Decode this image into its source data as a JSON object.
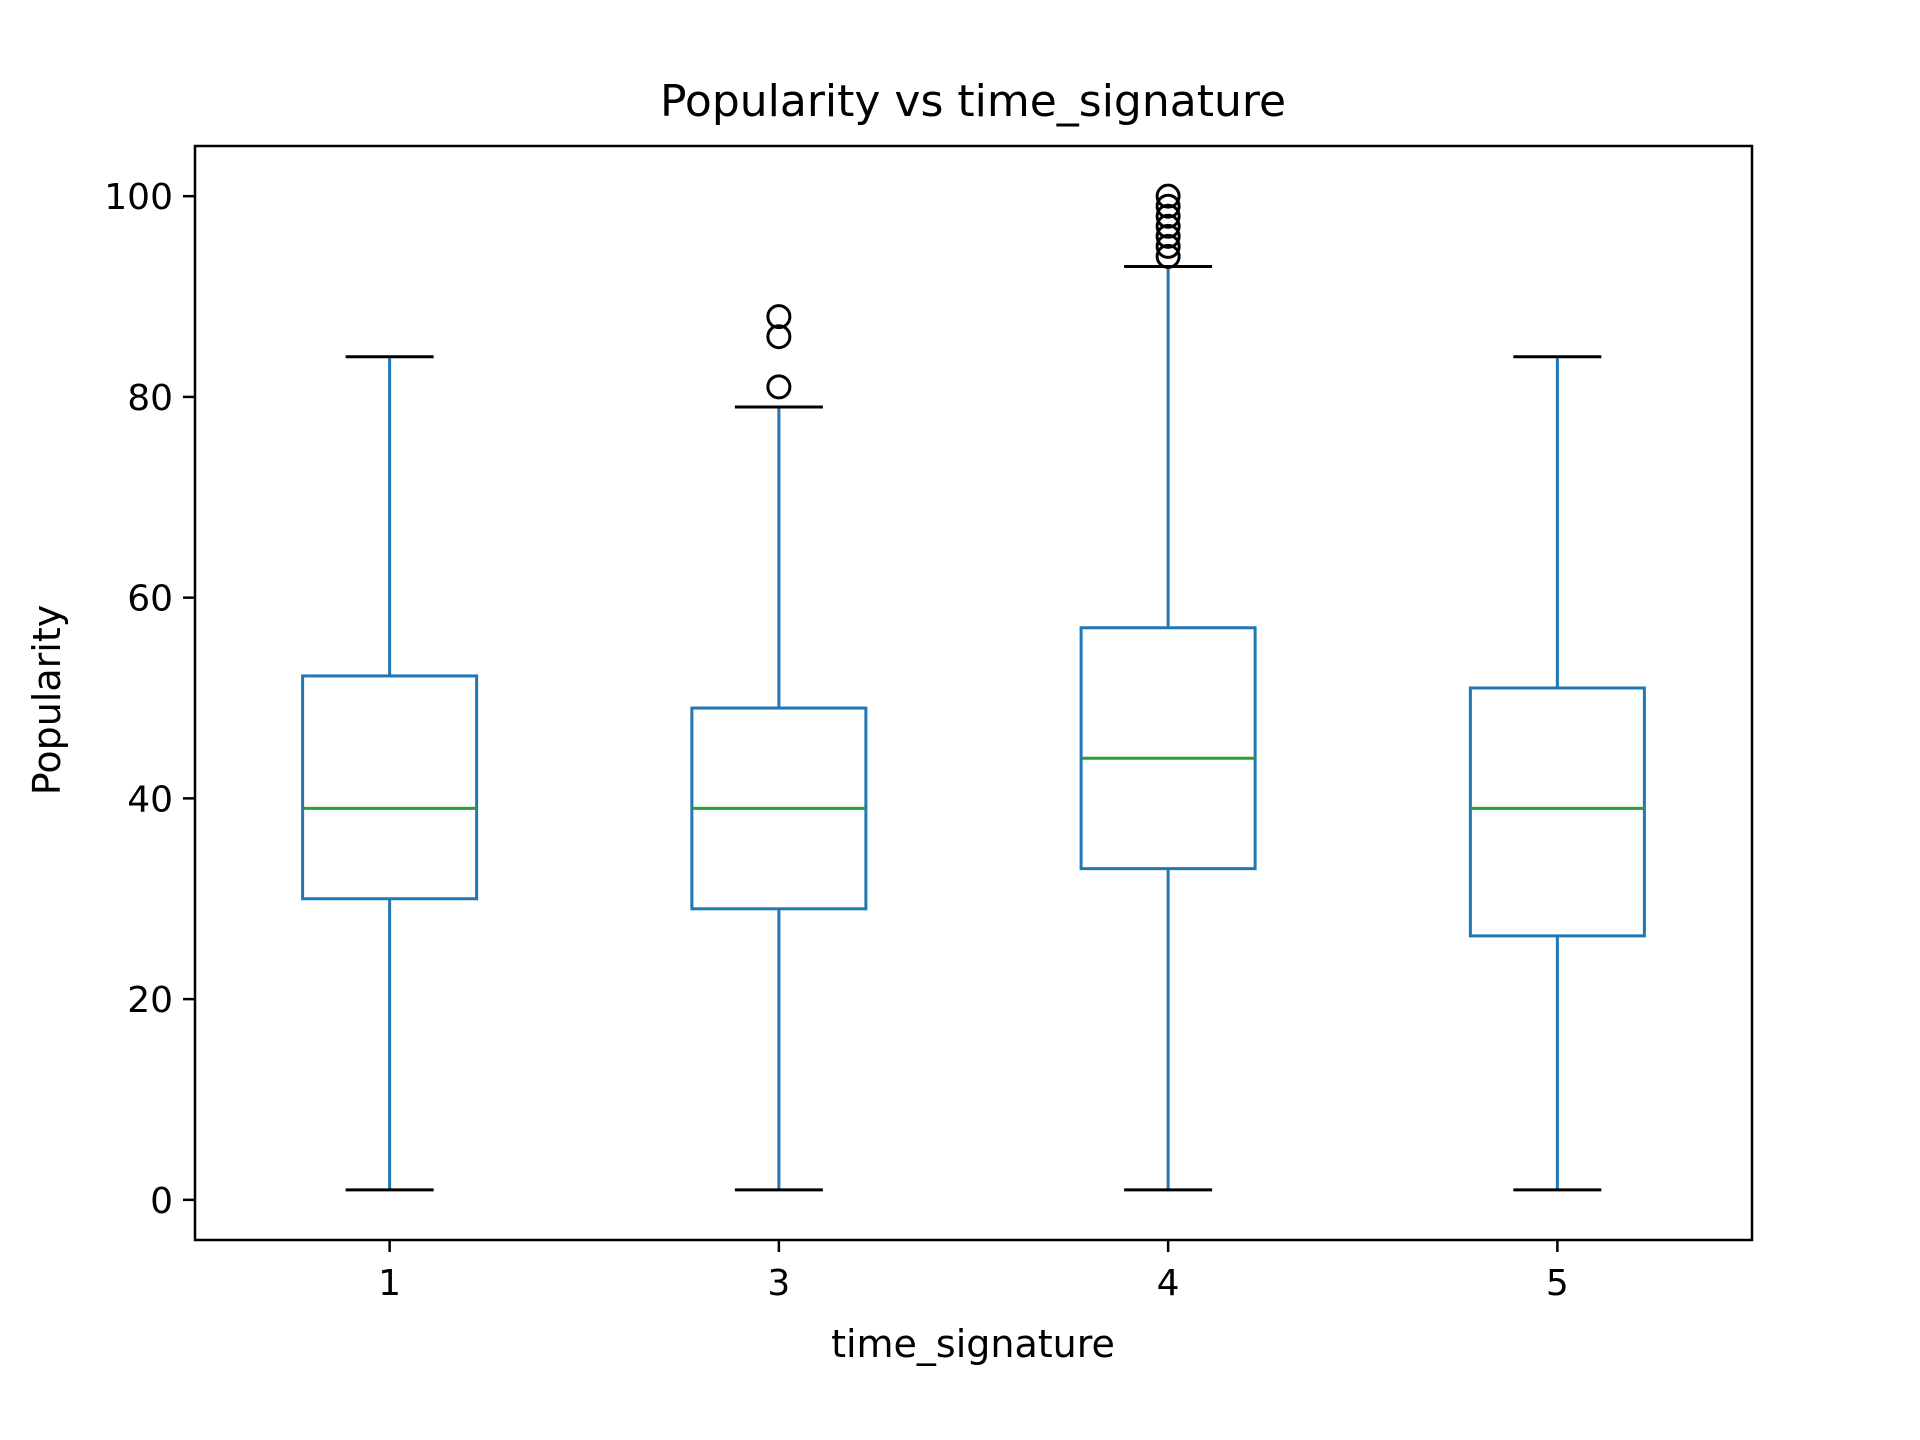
{
  "chart_data": {
    "type": "box",
    "title": "Popularity vs time_signature",
    "xlabel": "time_signature",
    "ylabel": "Popularity",
    "categories": [
      "1",
      "3",
      "4",
      "5"
    ],
    "ylim": [
      -4,
      105
    ],
    "yticks": [
      0,
      20,
      40,
      60,
      80,
      100
    ],
    "grid": false,
    "legend": "none",
    "boxes": [
      {
        "category": "1",
        "whisker_low": 1,
        "q1": 30,
        "median": 39,
        "q3": 52.2,
        "whisker_high": 84,
        "outliers": []
      },
      {
        "category": "3",
        "whisker_low": 1,
        "q1": 29,
        "median": 39,
        "q3": 49,
        "whisker_high": 79,
        "outliers": [
          81,
          86,
          88
        ]
      },
      {
        "category": "4",
        "whisker_low": 1,
        "q1": 33,
        "median": 44,
        "q3": 57,
        "whisker_high": 93,
        "outliers": [
          94,
          95,
          96,
          97,
          98,
          99,
          100
        ]
      },
      {
        "category": "5",
        "whisker_low": 1,
        "q1": 26.3,
        "median": 39,
        "q3": 51,
        "whisker_high": 84,
        "outliers": []
      }
    ],
    "colors": {
      "box": "#1f77b4",
      "median": "#2ca02c",
      "caps": "#000000",
      "axes": "#000000",
      "text": "#000000"
    }
  }
}
